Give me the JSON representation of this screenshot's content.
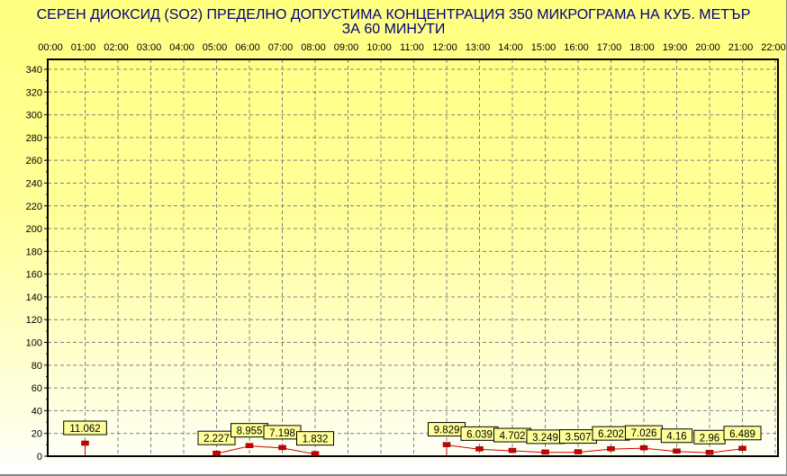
{
  "chart_data": {
    "type": "line",
    "title": "СЕРЕН ДИОКСИД  (SO2)  ПРЕДЕЛНО ДОПУСТИМА КОНЦЕНТРАЦИЯ 350 МИКРОГРАМА  НА КУБ. МЕТЪР",
    "subtitle": "ЗА 60 МИНУТИ",
    "xlabel": "",
    "ylabel": "",
    "x_ticks": [
      "00:00",
      "01:00",
      "02:00",
      "03:00",
      "04:00",
      "05:00",
      "06:00",
      "07:00",
      "08:00",
      "09:00",
      "10:00",
      "11:00",
      "12:00",
      "13:00",
      "14:00",
      "15:00",
      "16:00",
      "17:00",
      "18:00",
      "19:00",
      "20:00",
      "21:00",
      "22:00"
    ],
    "y_ticks": [
      0,
      20,
      40,
      60,
      80,
      100,
      120,
      140,
      160,
      180,
      200,
      220,
      240,
      260,
      280,
      300,
      320,
      340
    ],
    "ylim": [
      0,
      350
    ],
    "grid": true,
    "series": [
      {
        "points": [
          {
            "x": "01:00",
            "y": 11.062,
            "label": "11.062"
          },
          {
            "x": "05:00",
            "y": 2.227,
            "label": "2.227"
          },
          {
            "x": "06:00",
            "y": 8.955,
            "label": "8.955"
          },
          {
            "x": "07:00",
            "y": 7.198,
            "label": "7.198"
          },
          {
            "x": "08:00",
            "y": 1.832,
            "label": "1.832"
          },
          {
            "x": "12:00",
            "y": 9.829,
            "label": "9.829"
          },
          {
            "x": "13:00",
            "y": 6.039,
            "label": "6.039"
          },
          {
            "x": "14:00",
            "y": 4.702,
            "label": "4.702"
          },
          {
            "x": "15:00",
            "y": 3.249,
            "label": "3.249"
          },
          {
            "x": "16:00",
            "y": 3.507,
            "label": "3.507"
          },
          {
            "x": "17:00",
            "y": 6.202,
            "label": "6.202"
          },
          {
            "x": "18:00",
            "y": 7.026,
            "label": "7.026"
          },
          {
            "x": "19:00",
            "y": 4.16,
            "label": "4.16"
          },
          {
            "x": "20:00",
            "y": 2.96,
            "label": "2.96"
          },
          {
            "x": "21:00",
            "y": 6.489,
            "label": "6.489"
          }
        ]
      }
    ],
    "colors": {
      "series": "#cc0000",
      "title": "#000080",
      "label_bg": "#ffff99",
      "grid": "#808080"
    }
  }
}
